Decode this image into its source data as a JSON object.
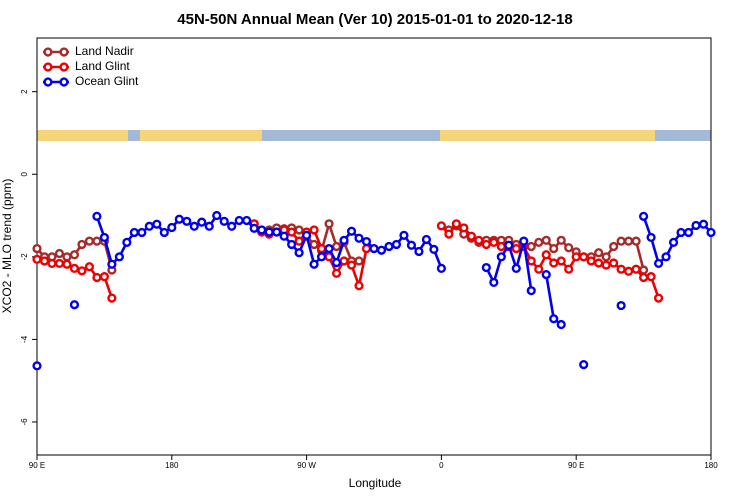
{
  "chart_data": {
    "type": "line",
    "title": "45N-50N Annual Mean (Ver 10)   2015-01-01 to 2020-12-18",
    "x_label": "Longitude",
    "y_label": "XCO2 - MLO trend (ppm)",
    "xlim": [
      90,
      540
    ],
    "xticks": [
      {
        "value": 90,
        "label": "90 E"
      },
      180,
      {
        "value": 270,
        "label": "90 W"
      },
      {
        "value": 360,
        "label": "0"
      },
      {
        "value": 450,
        "label": "90 E"
      },
      {
        "value": 540,
        "label": "180"
      }
    ],
    "ylim": [
      -6.8,
      3.3
    ],
    "yticks": [
      -6,
      -4,
      -2,
      0,
      2
    ],
    "legend": "top-left",
    "x": [
      90,
      95,
      100,
      105,
      110,
      115,
      120,
      125,
      130,
      135,
      140,
      145,
      150,
      155,
      160,
      165,
      170,
      175,
      180,
      185,
      190,
      195,
      200,
      205,
      210,
      215,
      220,
      225,
      230,
      235,
      240,
      245,
      250,
      255,
      260,
      265,
      270,
      275,
      280,
      285,
      290,
      295,
      300,
      305,
      310,
      315,
      320,
      325,
      330,
      335,
      340,
      345,
      350,
      355,
      360,
      365,
      370,
      375,
      380,
      385,
      390,
      395,
      400,
      405,
      410,
      415,
      420,
      425,
      430,
      435,
      440,
      445,
      450,
      455,
      460,
      465,
      470,
      475,
      480,
      485,
      490,
      495,
      500,
      505,
      510,
      515,
      520,
      525,
      530,
      535,
      540
    ],
    "series": [
      {
        "name": "Land Nadir",
        "color": "#a52a2a",
        "values": [
          -1.8,
          -2.0,
          -2.0,
          -1.92,
          -2.0,
          -1.95,
          -1.7,
          -1.62,
          -1.62,
          -1.62,
          -2.32,
          null,
          null,
          null,
          null,
          null,
          null,
          null,
          null,
          null,
          null,
          null,
          null,
          null,
          null,
          null,
          null,
          null,
          null,
          -1.2,
          -1.35,
          -1.35,
          -1.3,
          -1.32,
          -1.3,
          -1.35,
          -1.5,
          -1.7,
          -1.85,
          -1.2,
          -1.75,
          -1.65,
          -2.1,
          -2.1,
          null,
          null,
          null,
          null,
          null,
          null,
          null,
          null,
          null,
          null,
          null,
          -1.35,
          -1.25,
          -1.45,
          -1.55,
          -1.65,
          -1.6,
          -1.6,
          -1.6,
          -1.6,
          -1.7,
          -1.7,
          -1.75,
          -1.65,
          -1.6,
          -1.8,
          -1.6,
          -1.78,
          -1.88,
          -2.0,
          -2.0,
          -1.9,
          -2.0,
          -1.75,
          -1.62,
          -1.62,
          -1.62,
          -2.32,
          null,
          null,
          null,
          null,
          null,
          null,
          null,
          null,
          null
        ]
      },
      {
        "name": "Land Glint",
        "color": "#ee0000",
        "values": [
          -2.06,
          -2.1,
          -2.16,
          -2.16,
          -2.18,
          -2.28,
          -2.34,
          -2.24,
          -2.5,
          -2.48,
          -3.0,
          null,
          null,
          null,
          null,
          null,
          null,
          null,
          null,
          null,
          null,
          null,
          null,
          null,
          null,
          null,
          null,
          null,
          null,
          -1.2,
          -1.4,
          -1.45,
          -1.4,
          -1.35,
          -1.4,
          -1.62,
          -1.4,
          -1.35,
          -1.8,
          -2.0,
          -2.4,
          -2.1,
          -2.2,
          -2.7,
          -1.8,
          null,
          null,
          null,
          null,
          null,
          null,
          null,
          null,
          null,
          -1.25,
          -1.45,
          -1.2,
          -1.3,
          -1.5,
          -1.6,
          -1.7,
          -1.65,
          -1.75,
          -1.75,
          -1.8,
          -1.75,
          -2.1,
          -2.3,
          -1.95,
          -2.15,
          -2.1,
          -2.3,
          -2.0,
          -2.0,
          -2.1,
          -2.15,
          -2.2,
          -2.15,
          -2.3,
          -2.35,
          -2.3,
          -2.5,
          -2.48,
          -3.0,
          null,
          null,
          null,
          null,
          null,
          null,
          null
        ]
      },
      {
        "name": "Ocean Glint",
        "color": "#0000ee",
        "values": [
          -4.64,
          null,
          null,
          null,
          null,
          -3.16,
          null,
          null,
          -1.02,
          -1.53,
          -2.18,
          -2.0,
          -1.65,
          -1.41,
          -1.41,
          -1.26,
          -1.21,
          -1.41,
          -1.29,
          -1.09,
          -1.14,
          -1.26,
          -1.16,
          -1.26,
          -1.0,
          -1.14,
          -1.26,
          -1.12,
          -1.12,
          -1.31,
          -1.35,
          -1.4,
          -1.4,
          -1.5,
          -1.7,
          -1.9,
          -1.48,
          -2.18,
          -2.0,
          -1.8,
          -2.14,
          -1.6,
          -1.38,
          -1.55,
          -1.63,
          -1.8,
          -1.84,
          -1.75,
          -1.7,
          -1.48,
          -1.72,
          -1.87,
          -1.58,
          -1.82,
          -2.28,
          null,
          null,
          null,
          null,
          null,
          -2.26,
          -2.62,
          -2.0,
          -1.72,
          -2.28,
          -1.62,
          -2.82,
          null,
          -2.43,
          -3.5,
          -3.64,
          null,
          null,
          -4.61,
          null,
          null,
          null,
          null,
          -3.18,
          null,
          null,
          -1.02,
          -1.53,
          -2.16,
          -2.0,
          -1.65,
          -1.41,
          -1.41,
          -1.24,
          -1.21,
          -1.41
        ]
      }
    ]
  }
}
